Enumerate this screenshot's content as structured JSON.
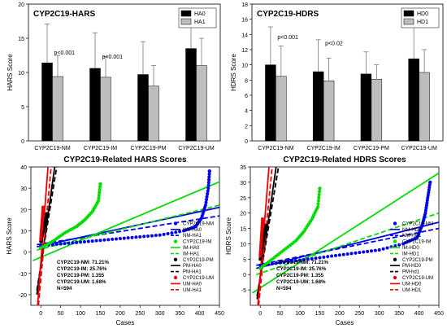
{
  "chart_data": [
    {
      "type": "bar",
      "title": "CYP2C19-HARS",
      "ylabel": "HARS Score",
      "xlabel": "",
      "ylim": [
        0,
        20
      ],
      "yticks": [
        0,
        5,
        10,
        15,
        20
      ],
      "categories": [
        "CYP2C19-NM",
        "CYP2C19-IM",
        "CYP2C19-PM",
        "CYP2C19-UM"
      ],
      "series": [
        {
          "name": "HA0",
          "color": "#000000",
          "values": [
            11.4,
            10.6,
            9.7,
            13.5
          ],
          "errors": [
            5.7,
            5.2,
            4.8,
            5.7
          ]
        },
        {
          "name": "HA1",
          "color": "#bdbdbd",
          "values": [
            9.4,
            9.3,
            8.0,
            11.0
          ],
          "errors": [
            3.1,
            3.0,
            3.0,
            4.0
          ]
        }
      ],
      "annotations": [
        {
          "category": 0,
          "text": "p<0.001",
          "y": 12.6
        },
        {
          "category": 1,
          "text": "p<0.001",
          "y": 12.0
        }
      ],
      "legend": "top-right"
    },
    {
      "type": "bar",
      "title": "CYP2C19-HDRS",
      "ylabel": "HDRS Score",
      "xlabel": "",
      "ylim": [
        0,
        18
      ],
      "yticks": [
        0,
        2,
        4,
        6,
        8,
        10,
        12,
        14,
        16,
        18
      ],
      "categories": [
        "CYP2C19-NM",
        "CYP2C19-IM",
        "CYP2C19-PM",
        "CYP2C19-UM"
      ],
      "series": [
        {
          "name": "HD0",
          "color": "#000000",
          "values": [
            10.0,
            9.1,
            8.8,
            10.8
          ],
          "errors": [
            5.0,
            4.2,
            2.9,
            5.0
          ]
        },
        {
          "name": "HD1",
          "color": "#bdbdbd",
          "values": [
            8.5,
            7.9,
            8.1,
            9.0
          ],
          "errors": [
            4.0,
            3.0,
            1.9,
            3.0
          ]
        }
      ],
      "annotations": [
        {
          "category": 0,
          "text": "p<0.001",
          "y": 13.4
        },
        {
          "category": 1,
          "text": "p<0.02",
          "y": 12.6
        }
      ],
      "legend": "top-right"
    },
    {
      "type": "scatter",
      "title": "CYP2C19-Related HARS Scores",
      "xlabel": "Cases",
      "ylabel": "HARS Score",
      "xlim": [
        -25,
        450
      ],
      "ylim": [
        -25,
        40
      ],
      "xticks": [
        0,
        50,
        100,
        150,
        200,
        250,
        300,
        350,
        400,
        450
      ],
      "yticks": [
        -20,
        -10,
        0,
        10,
        20,
        30,
        40
      ],
      "series": [
        {
          "name": "CYP2C19-NM",
          "kind": "points",
          "color": "#0000ee",
          "group": "NM",
          "points": [
            [
              0,
              3
            ],
            [
              60,
              4
            ],
            [
              120,
              5
            ],
            [
              180,
              6
            ],
            [
              240,
              7
            ],
            [
              300,
              8
            ],
            [
              360,
              10
            ],
            [
              390,
              12
            ],
            [
              405,
              16
            ],
            [
              415,
              22
            ],
            [
              422,
              30
            ],
            [
              425,
              38
            ]
          ]
        },
        {
          "name": "NM-HA0",
          "kind": "line",
          "color": "#0000ee",
          "dash": false,
          "line": [
            [
              -10,
              2.5
            ],
            [
              450,
              21
            ]
          ]
        },
        {
          "name": "NM-HA1",
          "kind": "line",
          "color": "#0000ee",
          "dash": true,
          "line": [
            [
              -10,
              3.5
            ],
            [
              450,
              17
            ]
          ]
        },
        {
          "name": "CYP2C19-IM",
          "kind": "points",
          "color": "#00dd00",
          "group": "IM",
          "points": [
            [
              0,
              2
            ],
            [
              30,
              5
            ],
            [
              60,
              9
            ],
            [
              90,
              12
            ],
            [
              110,
              15
            ],
            [
              130,
              19
            ],
            [
              145,
              24
            ],
            [
              150,
              32
            ]
          ]
        },
        {
          "name": "IM-HA0",
          "kind": "line",
          "color": "#00dd00",
          "dash": false,
          "line": [
            [
              -20,
              -4
            ],
            [
              450,
              33
            ]
          ]
        },
        {
          "name": "IM-HA1",
          "kind": "line",
          "color": "#00dd00",
          "dash": true,
          "line": [
            [
              -10,
              1
            ],
            [
              450,
              22
            ]
          ]
        },
        {
          "name": "CYP2C19-PM",
          "kind": "points",
          "color": "#000000",
          "group": "PM",
          "points": [
            [
              0,
              5
            ],
            [
              5,
              9
            ],
            [
              10,
              13
            ],
            [
              15,
              18
            ]
          ]
        },
        {
          "name": "PM-HA0",
          "kind": "line",
          "color": "#000000",
          "dash": false,
          "line": [
            [
              -10,
              -20
            ],
            [
              35,
              40
            ]
          ]
        },
        {
          "name": "PM-HA1",
          "kind": "line",
          "color": "#000000",
          "dash": true,
          "line": [
            [
              -10,
              -18
            ],
            [
              40,
              40
            ]
          ]
        },
        {
          "name": "CYP2C19-UM",
          "kind": "points",
          "color": "#ee0000",
          "group": "UM",
          "points": [
            [
              0,
              6
            ],
            [
              2,
              11
            ],
            [
              4,
              16
            ],
            [
              6,
              21
            ]
          ]
        },
        {
          "name": "UM-HA0",
          "kind": "line",
          "color": "#ee0000",
          "dash": false,
          "line": [
            [
              -8,
              -25
            ],
            [
              18,
              40
            ]
          ]
        },
        {
          "name": "UM-HA1",
          "kind": "line",
          "color": "#ee0000",
          "dash": true,
          "line": [
            [
              -6,
              -25
            ],
            [
              26,
              40
            ]
          ]
        }
      ],
      "annotations": [
        "CYP2C19-NM: 71.21%",
        "CYP2C19-IM: 25.76%",
        "CYP2C19-PM: 1.355",
        "CYP2C19-UM: 1.68%",
        "N=594"
      ],
      "legend": "right"
    },
    {
      "type": "scatter",
      "title": "CYP2C19-Related HDRS Scores",
      "xlabel": "Cases",
      "ylabel": "HDRS Score",
      "xlim": [
        -25,
        450
      ],
      "ylim": [
        -10,
        35
      ],
      "xticks": [
        0,
        50,
        100,
        150,
        200,
        250,
        300,
        350,
        400,
        450
      ],
      "yticks": [
        -5,
        0,
        5,
        10,
        15,
        20,
        25,
        30,
        35
      ],
      "series": [
        {
          "name": "CYP2C19-NM",
          "kind": "points",
          "color": "#0000ee",
          "group": "NM",
          "points": [
            [
              0,
              3
            ],
            [
              60,
              4
            ],
            [
              120,
              5
            ],
            [
              180,
              6
            ],
            [
              240,
              7
            ],
            [
              300,
              8
            ],
            [
              360,
              10
            ],
            [
              395,
              12
            ],
            [
              408,
              16
            ],
            [
              416,
              20
            ],
            [
              422,
              25
            ],
            [
              428,
              30
            ]
          ]
        },
        {
          "name": "NM-HD0",
          "kind": "line",
          "color": "#0000ee",
          "dash": false,
          "line": [
            [
              -10,
              2
            ],
            [
              450,
              17
            ]
          ]
        },
        {
          "name": "NM-HD1",
          "kind": "line",
          "color": "#0000ee",
          "dash": true,
          "line": [
            [
              -10,
              3
            ],
            [
              450,
              15
            ]
          ]
        },
        {
          "name": "CYP2C19-IM",
          "kind": "points",
          "color": "#00dd00",
          "group": "IM",
          "points": [
            [
              0,
              2
            ],
            [
              30,
              5
            ],
            [
              60,
              8
            ],
            [
              90,
              11
            ],
            [
              110,
              14
            ],
            [
              130,
              18
            ],
            [
              145,
              22
            ],
            [
              150,
              28
            ]
          ]
        },
        {
          "name": "IM-HD0",
          "kind": "line",
          "color": "#00dd00",
          "dash": false,
          "line": [
            [
              -20,
              -6
            ],
            [
              450,
              33
            ]
          ]
        },
        {
          "name": "IM-HD1",
          "kind": "line",
          "color": "#00dd00",
          "dash": true,
          "line": [
            [
              -10,
              0
            ],
            [
              450,
              20
            ]
          ]
        },
        {
          "name": "CYP2C19-PM",
          "kind": "points",
          "color": "#000000",
          "group": "PM",
          "points": [
            [
              0,
              5
            ],
            [
              5,
              9
            ],
            [
              10,
              13
            ],
            [
              15,
              16
            ]
          ]
        },
        {
          "name": "PM-HD0",
          "kind": "line",
          "color": "#000000",
          "dash": false,
          "line": [
            [
              -8,
              -8
            ],
            [
              40,
              35
            ]
          ]
        },
        {
          "name": "PM-hd1",
          "kind": "line",
          "color": "#000000",
          "dash": true,
          "line": [
            [
              -8,
              -7
            ],
            [
              46,
              35
            ]
          ]
        },
        {
          "name": "CYP2C19-UM",
          "kind": "points",
          "color": "#ee0000",
          "group": "UM",
          "points": [
            [
              0,
              6
            ],
            [
              2,
              10
            ],
            [
              4,
              14
            ],
            [
              6,
              18
            ]
          ]
        },
        {
          "name": "UM-HD0",
          "kind": "line",
          "color": "#ee0000",
          "dash": false,
          "line": [
            [
              -6,
              -10
            ],
            [
              22,
              35
            ]
          ]
        },
        {
          "name": "UM-HD1",
          "kind": "line",
          "color": "#ee0000",
          "dash": true,
          "line": [
            [
              -4,
              -10
            ],
            [
              30,
              35
            ]
          ]
        }
      ],
      "annotations": [
        "CYP2C19-NM: 71.21%",
        "CYP2C19-IM: 25.76%",
        "CYP2C19-PM: 1.355",
        "CYP2C19-UM: 1.68%",
        "N=594"
      ],
      "legend": "right"
    }
  ]
}
